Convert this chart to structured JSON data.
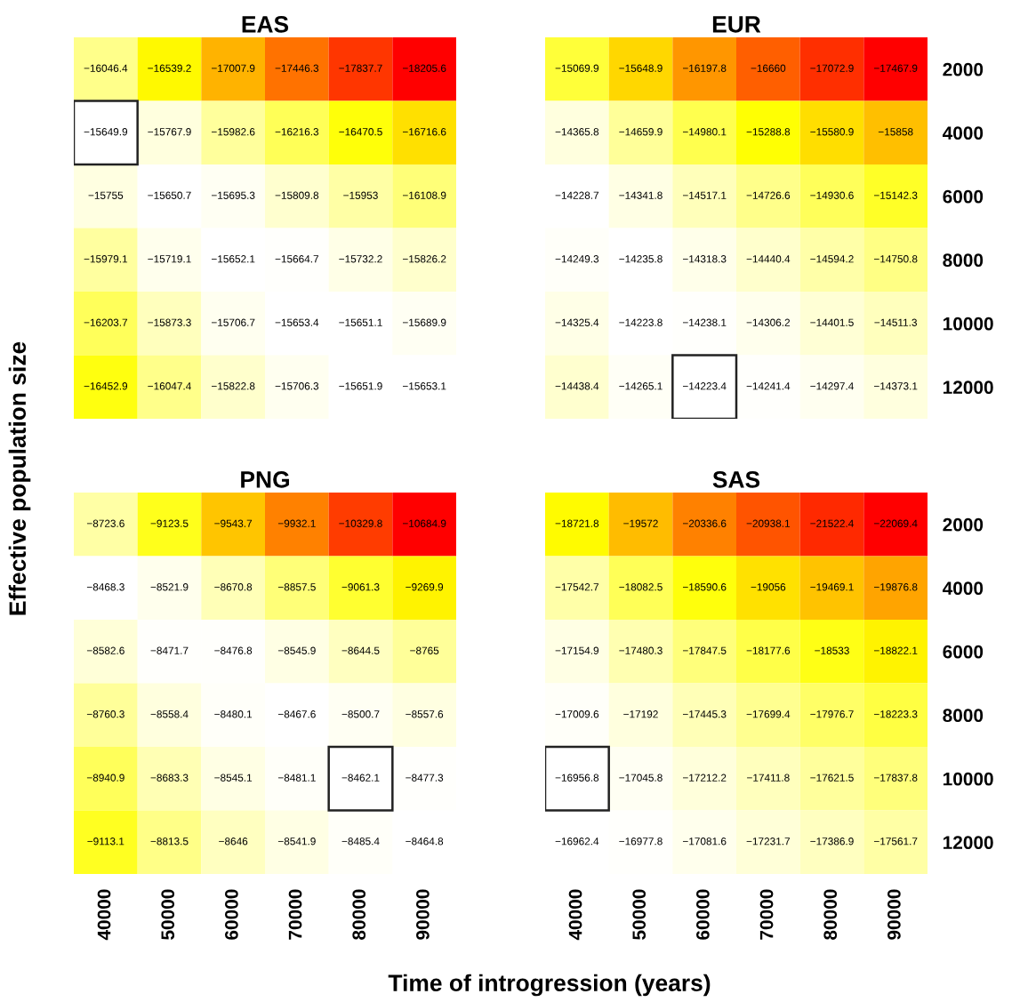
{
  "chart_data": [
    {
      "type": "heatmap",
      "title": "EAS",
      "ylabel": "Effective population size",
      "tick_labels": false,
      "data_labels": true,
      "categories": [
        "40000",
        "50000",
        "60000",
        "70000",
        "80000",
        "90000"
      ],
      "y_categories": [
        "2000",
        "4000",
        "6000",
        "8000",
        "10000",
        "12000"
      ],
      "cells": [
        [
          -16046.4,
          -16539.2,
          -17007.9,
          -17446.3,
          -17837.7,
          -18205.6
        ],
        [
          -15649.9,
          -15767.9,
          -15982.6,
          -16216.3,
          -16470.5,
          -16716.6
        ],
        [
          -15755,
          -15650.7,
          -15695.3,
          -15809.8,
          -15953,
          -16108.9
        ],
        [
          -15979.1,
          -15719.1,
          -15652.1,
          -15664.7,
          -15732.2,
          -15826.2
        ],
        [
          -16203.7,
          -15873.3,
          -15706.7,
          -15653.4,
          -15651.1,
          -15689.9
        ],
        [
          -16452.9,
          -16047.4,
          -15822.8,
          -15706.3,
          -15651.9,
          -15653.1
        ]
      ]
    },
    {
      "type": "heatmap",
      "title": "EUR",
      "tick_labels": "y",
      "data_labels": true,
      "categories": [
        "40000",
        "50000",
        "60000",
        "70000",
        "80000",
        "90000"
      ],
      "y_categories": [
        "2000",
        "4000",
        "6000",
        "8000",
        "10000",
        "12000"
      ],
      "cells": [
        [
          -15069.9,
          -15648.9,
          -16197.8,
          -16660,
          -17072.9,
          -17467.9
        ],
        [
          -14365.8,
          -14659.9,
          -14980.1,
          -15288.8,
          -15580.9,
          -15858
        ],
        [
          -14228.7,
          -14341.8,
          -14517.1,
          -14726.6,
          -14930.6,
          -15142.3
        ],
        [
          -14249.3,
          -14235.8,
          -14318.3,
          -14440.4,
          -14594.2,
          -14750.8
        ],
        [
          -14325.4,
          -14223.8,
          -14238.1,
          -14306.2,
          -14401.5,
          -14511.3
        ],
        [
          -14438.4,
          -14265.1,
          -14223.4,
          -14241.4,
          -14297.4,
          -14373.1
        ]
      ]
    },
    {
      "type": "heatmap",
      "title": "PNG",
      "xlabel": "Time of introgression (years)",
      "tick_labels": "x",
      "data_labels": true,
      "categories": [
        "40000",
        "50000",
        "60000",
        "70000",
        "80000",
        "90000"
      ],
      "y_categories": [
        "2000",
        "4000",
        "6000",
        "8000",
        "10000",
        "12000"
      ],
      "cells": [
        [
          -8723.6,
          -9123.5,
          -9543.7,
          -9932.1,
          -10329.8,
          -10684.9
        ],
        [
          -8468.3,
          -8521.9,
          -8670.8,
          -8857.5,
          -9061.3,
          -9269.9
        ],
        [
          -8582.6,
          -8471.7,
          -8476.8,
          -8545.9,
          -8644.5,
          -8765
        ],
        [
          -8760.3,
          -8558.4,
          -8480.1,
          -8467.6,
          -8500.7,
          -8557.6
        ],
        [
          -8940.9,
          -8683.3,
          -8545.1,
          -8481.1,
          -8462.1,
          -8477.3
        ],
        [
          -9113.1,
          -8813.5,
          -8646,
          -8541.9,
          -8485.4,
          -8464.8
        ]
      ]
    },
    {
      "type": "heatmap",
      "title": "SAS",
      "data_labels": true,
      "categories": [
        "40000",
        "50000",
        "60000",
        "70000",
        "80000",
        "90000"
      ],
      "y_categories": [
        "2000",
        "4000",
        "6000",
        "8000",
        "10000",
        "12000"
      ],
      "cells": [
        [
          -18721.8,
          -19572,
          -20336.6,
          -20938.1,
          -21522.4,
          -22069.4
        ],
        [
          -17542.7,
          -18082.5,
          -18590.6,
          -19056,
          -19469.1,
          -19876.8
        ],
        [
          -17154.9,
          -17480.3,
          -17847.5,
          -18177.6,
          -18533,
          -18822.1
        ],
        [
          -17009.6,
          -17192,
          -17445.3,
          -17699.4,
          -17976.7,
          -18223.3
        ],
        [
          -16956.8,
          -17045.8,
          -17212.2,
          -17411.8,
          -17621.5,
          -17837.8
        ],
        [
          -16962.4,
          -16977.8,
          -17081.6,
          -17231.7,
          -17386.9,
          -17561.7
        ]
      ]
    }
  ]
}
